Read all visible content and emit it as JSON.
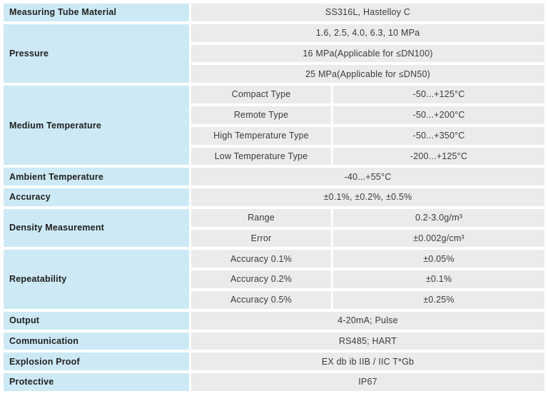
{
  "colors": {
    "group_bg": "#cde9f6",
    "cell_bg": "#ebebec",
    "label_text": "#1f1f1f",
    "value_text": "#3a3a3a",
    "page_bg": "#ffffff"
  },
  "table": {
    "groups": [
      {
        "label": "Measuring Tube Material",
        "rows": [
          {
            "value": "SS316L, Hastelloy C"
          }
        ]
      },
      {
        "label": "Pressure",
        "rows": [
          {
            "value": "1.6, 2.5, 4.0, 6.3, 10 MPa"
          },
          {
            "value": "16 MPa(Applicable for ≤DN100)"
          },
          {
            "value": "25 MPa(Applicable for ≤DN50)"
          }
        ]
      },
      {
        "label": "Medium Temperature",
        "rows": [
          {
            "sub": "Compact Type",
            "value": "-50...+125°C"
          },
          {
            "sub": "Remote Type",
            "value": "-50...+200°C"
          },
          {
            "sub": "High Temperature Type",
            "value": "-50...+350°C"
          },
          {
            "sub": "Low Temperature Type",
            "value": "-200...+125°C"
          }
        ]
      },
      {
        "label": "Ambient Temperature",
        "rows": [
          {
            "value": "-40...+55°C"
          }
        ]
      },
      {
        "label": "Accuracy",
        "rows": [
          {
            "value": "±0.1%, ±0.2%, ±0.5%"
          }
        ]
      },
      {
        "label": "Density Measurement",
        "rows": [
          {
            "sub": "Range",
            "value": "0.2-3.0g/m³"
          },
          {
            "sub": "Error",
            "value": "±0.002g/cm³"
          }
        ]
      },
      {
        "label": "Repeatability",
        "rows": [
          {
            "sub": "Accuracy 0.1%",
            "value": "±0.05%"
          },
          {
            "sub": "Accuracy 0.2%",
            "value": "±0.1%"
          },
          {
            "sub": "Accuracy 0.5%",
            "value": "±0.25%"
          }
        ]
      },
      {
        "label": "Output",
        "rows": [
          {
            "value": "4-20mA; Pulse"
          }
        ]
      },
      {
        "label": "Communication",
        "rows": [
          {
            "value": "RS485; HART"
          }
        ]
      },
      {
        "label": "Explosion Proof",
        "rows": [
          {
            "value": "EX db ib IIB / IIC T*Gb"
          }
        ]
      },
      {
        "label": "Protective",
        "rows": [
          {
            "value": "IP67"
          }
        ]
      }
    ]
  }
}
